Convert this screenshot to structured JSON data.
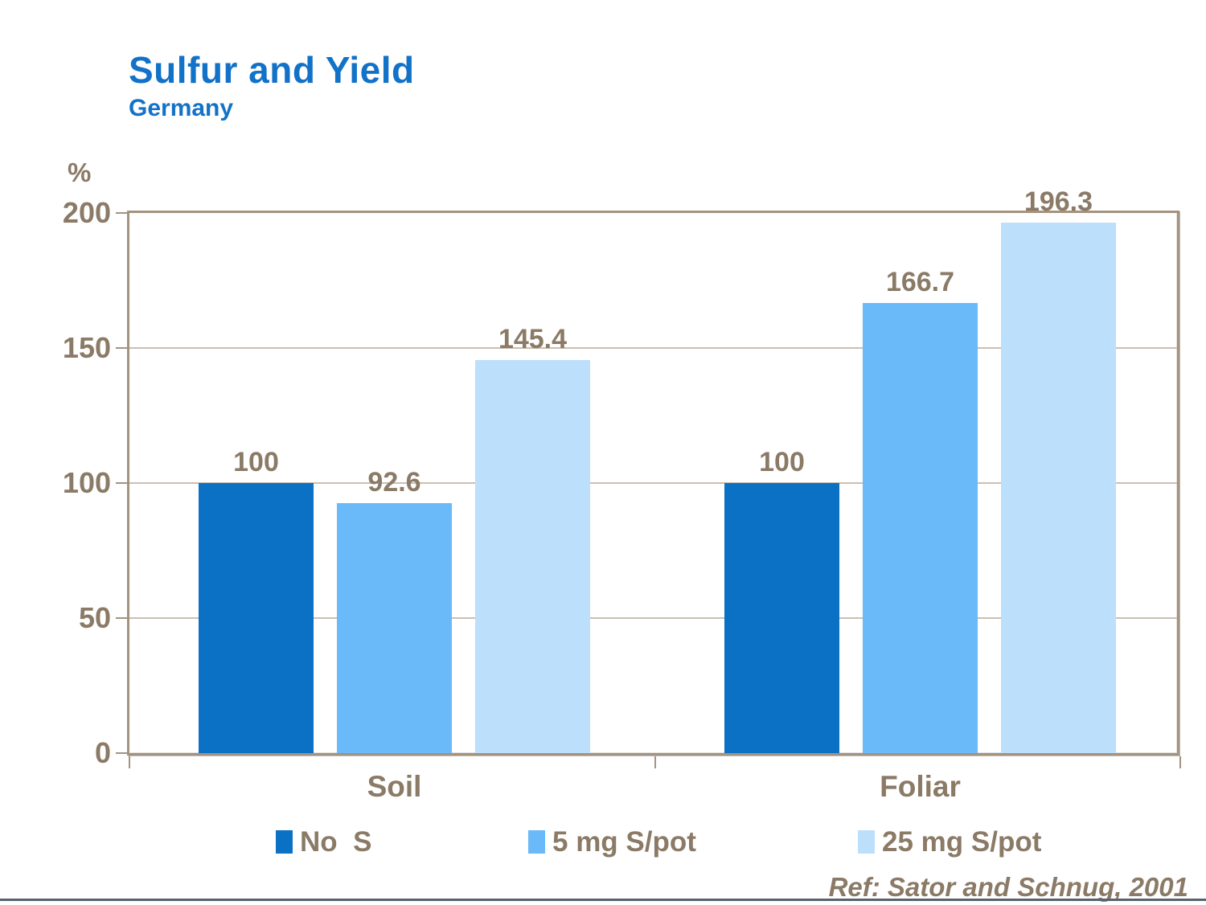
{
  "title": "Sulfur and Yield",
  "subtitle": "Germany",
  "reference": "Ref: Sator and Schnug, 2001",
  "chart_data": {
    "type": "bar",
    "categories": [
      "Soil",
      "Foliar"
    ],
    "series": [
      {
        "name": "No  S",
        "values": [
          100,
          100
        ],
        "color": "#0a71c5"
      },
      {
        "name": "5 mg S/pot",
        "values": [
          92.6,
          166.7
        ],
        "color": "#6abafa"
      },
      {
        "name": "25 mg S/pot",
        "values": [
          145.4,
          196.3
        ],
        "color": "#bcdffb"
      }
    ],
    "title": "Sulfur and Yield",
    "subtitle": "Germany",
    "xlabel": "",
    "ylabel": "%",
    "yticks": [
      0,
      50,
      100,
      150,
      200
    ],
    "ylim": [
      0,
      200
    ],
    "grid": true,
    "legend_position": "bottom",
    "annotation": "Ref: Sator and Schnug, 2001"
  },
  "colors": {
    "title_text": "#1272c8",
    "chart_text": "#8a7a66",
    "axis_frame": "#a3937f",
    "gridline": "#cbbfb1",
    "bottom_rule": "#55636e"
  }
}
